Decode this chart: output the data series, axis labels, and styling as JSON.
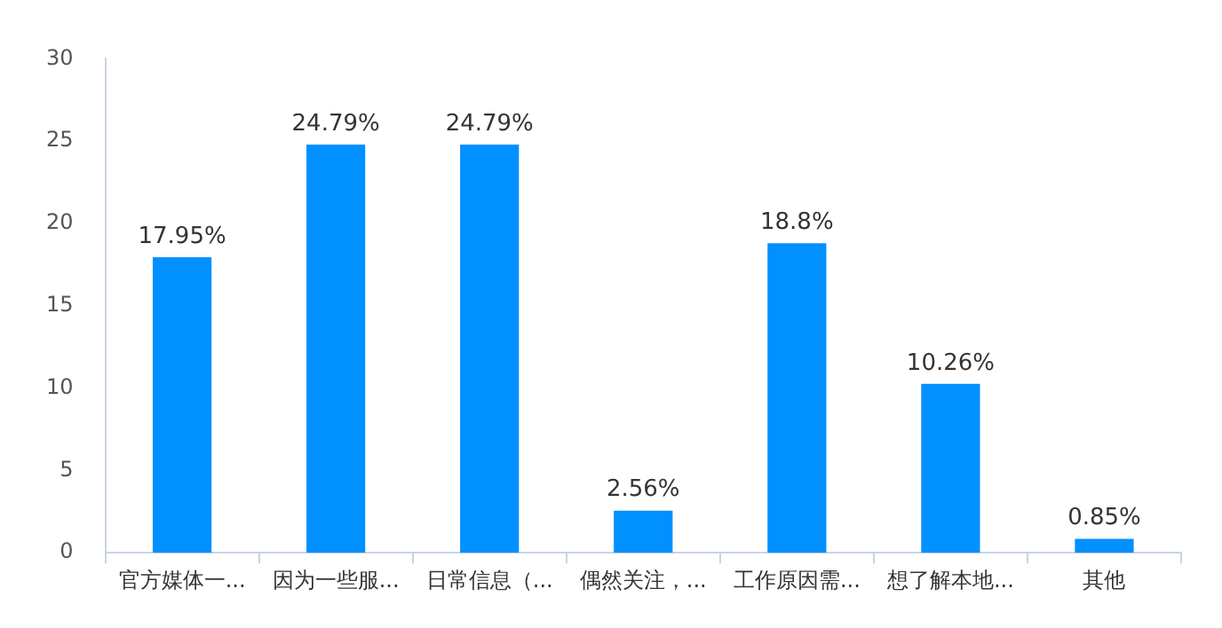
{
  "chart_data": {
    "type": "bar",
    "categories": [
      "官方媒体一...",
      "因为一些服...",
      "日常信息（...",
      "偶然关注，...",
      "工作原因需...",
      "想了解本地...",
      "其他"
    ],
    "values": [
      17.95,
      24.79,
      24.79,
      2.56,
      18.8,
      10.26,
      0.85
    ],
    "value_labels": [
      "17.95%",
      "24.79%",
      "24.79%",
      "2.56%",
      "18.8%",
      "10.26%",
      "0.85%"
    ],
    "color": "#0090ff",
    "ylim": [
      0,
      30
    ],
    "yticks": [
      0,
      5,
      10,
      15,
      20,
      25,
      30
    ],
    "grid": false,
    "legend": false
  }
}
